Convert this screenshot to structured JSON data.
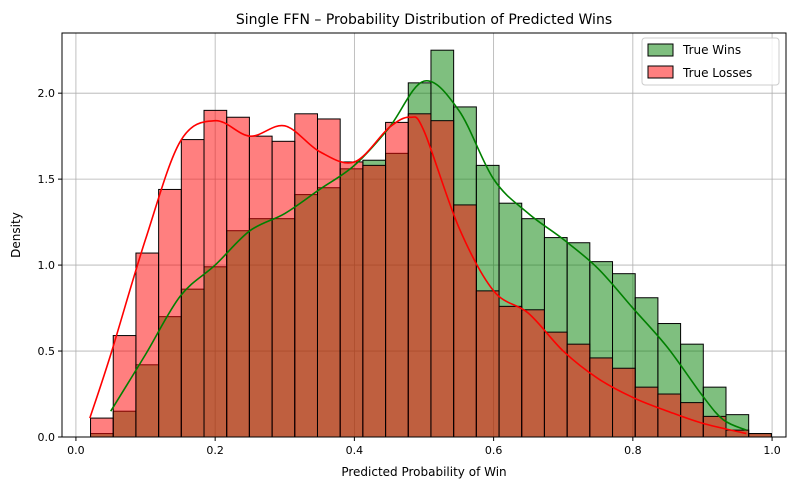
{
  "chart_data": {
    "type": "bar",
    "title": "Single FFN – Probability Distribution of Predicted Wins",
    "xlabel": "Predicted Probability of Win",
    "ylabel": "Density",
    "xlim": [
      -0.02,
      1.02
    ],
    "ylim": [
      0,
      2.35
    ],
    "xticks": [
      0.0,
      0.2,
      0.4,
      0.6,
      0.8,
      1.0
    ],
    "xtick_labels": [
      "0.0",
      "0.2",
      "0.4",
      "0.6",
      "0.8",
      "1.0"
    ],
    "yticks": [
      0.0,
      0.5,
      1.0,
      1.5,
      2.0
    ],
    "ytick_labels": [
      "0.0",
      "0.5",
      "1.0",
      "1.5",
      "2.0"
    ],
    "grid": true,
    "legend_position": "top-right",
    "bin_edges": [
      0.021,
      0.0536,
      0.0862,
      0.1188,
      0.1514,
      0.184,
      0.2166,
      0.2492,
      0.2818,
      0.3144,
      0.347,
      0.3796,
      0.4122,
      0.4448,
      0.4774,
      0.51,
      0.5426,
      0.5752,
      0.6078,
      0.6404,
      0.673,
      0.7056,
      0.7382,
      0.7708,
      0.8034,
      0.836,
      0.8686,
      0.9012,
      0.9338,
      0.9664
    ],
    "series": [
      {
        "name": "True Wins",
        "color": "#008000",
        "fill": "#80bf80",
        "values": [
          0.02,
          0.15,
          0.42,
          0.7,
          0.86,
          0.99,
          1.2,
          1.27,
          1.27,
          1.41,
          1.45,
          1.56,
          1.61,
          1.65,
          2.06,
          2.25,
          1.92,
          1.58,
          1.36,
          1.27,
          1.16,
          1.13,
          1.02,
          0.95,
          0.81,
          0.66,
          0.54,
          0.29,
          0.13,
          0.02
        ],
        "kde_x": [
          0.05,
          0.1,
          0.15,
          0.2,
          0.25,
          0.3,
          0.35,
          0.4,
          0.45,
          0.5,
          0.55,
          0.6,
          0.65,
          0.7,
          0.75,
          0.8,
          0.85,
          0.9,
          0.93,
          0.963
        ],
        "kde_y": [
          0.15,
          0.48,
          0.82,
          1.0,
          1.2,
          1.3,
          1.44,
          1.58,
          1.8,
          2.07,
          1.9,
          1.5,
          1.3,
          1.15,
          0.98,
          0.75,
          0.52,
          0.24,
          0.1,
          0.04
        ]
      },
      {
        "name": "True Losses",
        "color": "#ff0000",
        "fill": "#ff8080",
        "values": [
          0.11,
          0.59,
          1.07,
          1.44,
          1.73,
          1.9,
          1.86,
          1.75,
          1.72,
          1.88,
          1.85,
          1.6,
          1.58,
          1.83,
          1.88,
          1.84,
          1.35,
          0.85,
          0.76,
          0.74,
          0.61,
          0.54,
          0.46,
          0.4,
          0.29,
          0.25,
          0.2,
          0.12,
          0.04,
          0.02
        ],
        "kde_x": [
          0.02,
          0.05,
          0.1,
          0.15,
          0.2,
          0.25,
          0.3,
          0.35,
          0.4,
          0.45,
          0.48,
          0.5,
          0.55,
          0.6,
          0.65,
          0.7,
          0.75,
          0.8,
          0.85,
          0.9,
          0.963
        ],
        "kde_y": [
          0.11,
          0.48,
          1.15,
          1.72,
          1.84,
          1.75,
          1.81,
          1.66,
          1.6,
          1.8,
          1.86,
          1.78,
          1.22,
          0.85,
          0.72,
          0.5,
          0.34,
          0.23,
          0.15,
          0.08,
          0.02
        ]
      }
    ]
  }
}
